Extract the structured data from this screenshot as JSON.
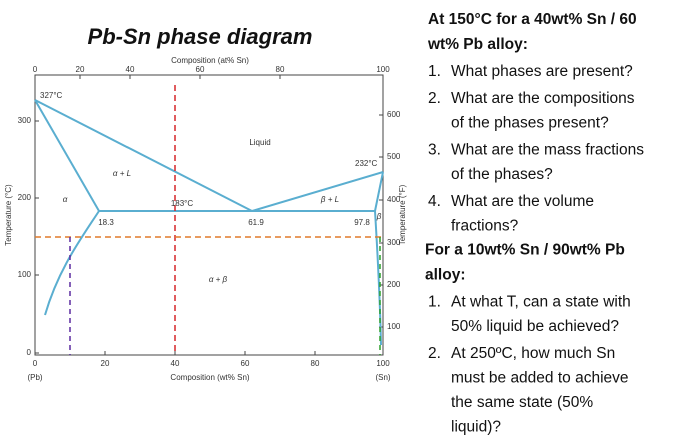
{
  "diagram": {
    "title": "Pb-Sn phase diagram",
    "top_axis_label": "Composition (at% Sn)",
    "bottom_axis_label": "Composition (wt% Sn)",
    "left_axis_label": "Temperature (°C)",
    "right_axis_label": "Temperature (°F)",
    "top_ticks": [
      "0",
      "20",
      "40",
      "60",
      "80",
      "100"
    ],
    "bottom_ticks": [
      "0",
      "20",
      "40",
      "60",
      "80",
      "100"
    ],
    "left_ticks": [
      "0",
      "100",
      "200",
      "300"
    ],
    "right_ticks": [
      "100",
      "200",
      "300",
      "400",
      "500",
      "600"
    ],
    "left_end": "(Pb)",
    "right_end": "(Sn)",
    "labels": [
      "327°C",
      "Liquid",
      "232°C",
      "α + L",
      "β + L",
      "α",
      "183°C",
      "18.3",
      "61.9",
      "97.8",
      "β",
      "α + β"
    ]
  },
  "questions": {
    "part1_heading": [
      "At 150°C for a 40wt% Sn / 60",
      "wt% Pb alloy:"
    ],
    "part1_items": [
      {
        "num": "1.",
        "lines": [
          "What phases are present?"
        ]
      },
      {
        "num": "2.",
        "lines": [
          "What are the compositions",
          "of the phases present?"
        ]
      },
      {
        "num": "3.",
        "lines": [
          "What are the mass fractions",
          "of the phases?"
        ]
      },
      {
        "num": "4.",
        "lines": [
          "What are the volume",
          "fractions?"
        ]
      }
    ],
    "part2_heading": [
      "For a 10wt% Sn / 90wt% Pb",
      "alloy:"
    ],
    "part2_items": [
      {
        "num": "1.",
        "lines": [
          "At what T, can a state with",
          "50% liquid be achieved?"
        ]
      },
      {
        "num": "2.",
        "lines": [
          "At 250ºC, how much Sn",
          "must be added to achieve",
          "the same state (50%",
          "liquid)?"
        ]
      }
    ]
  }
}
